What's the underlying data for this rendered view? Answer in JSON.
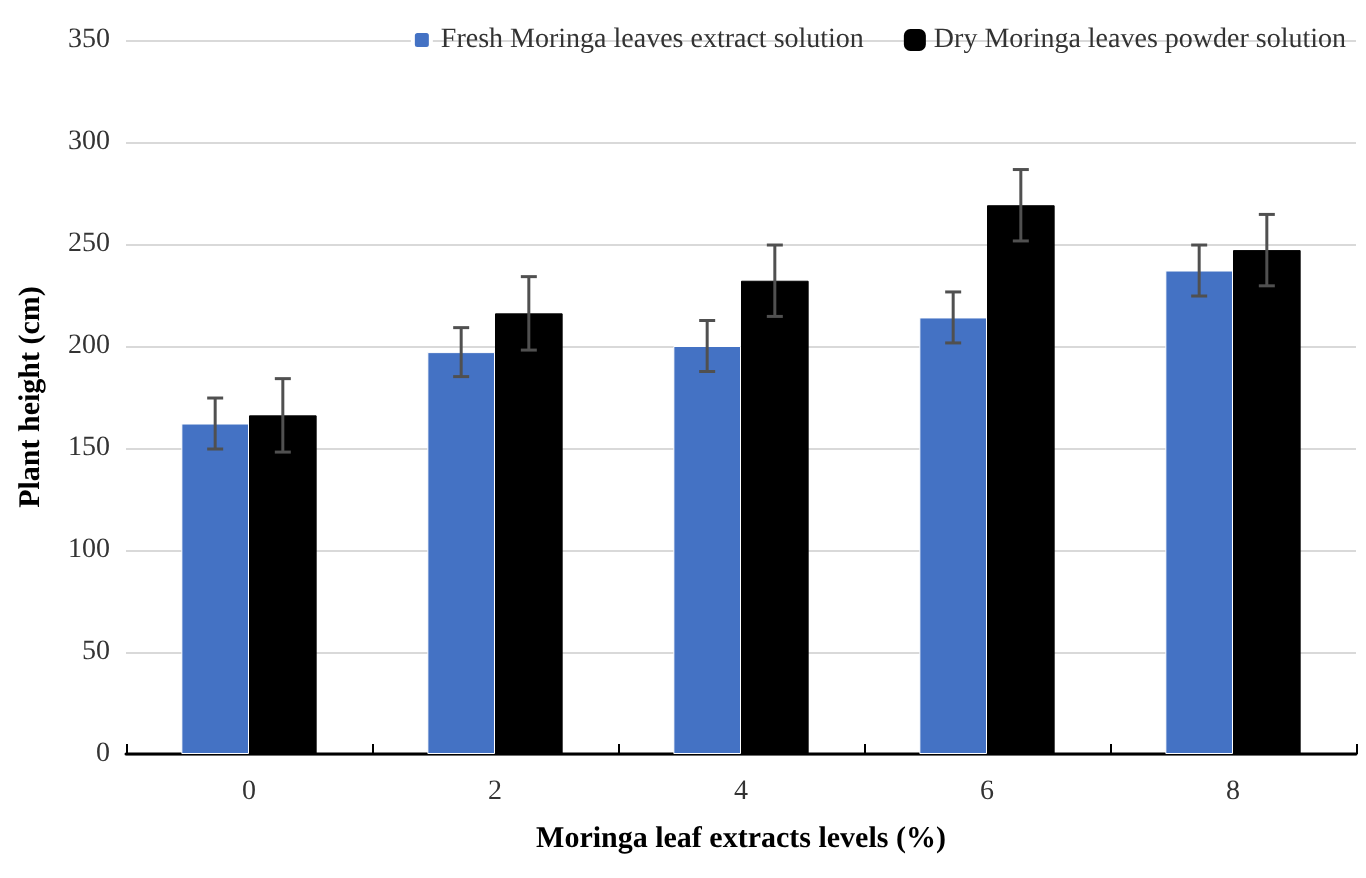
{
  "chart_data": {
    "type": "bar",
    "xlabel": "Moringa leaf extracts levels (%)",
    "ylabel": "Plant height (cm)",
    "categories": [
      "0",
      "2",
      "4",
      "6",
      "8"
    ],
    "series": [
      {
        "name": "Fresh Moringa leaves extract solution",
        "color": "#4472c4",
        "values": [
          162,
          197,
          200,
          214,
          237
        ],
        "errors": [
          12.5,
          12,
          12.5,
          12.5,
          12.5
        ]
      },
      {
        "name": "Dry Moringa leaves powder solution",
        "color": "#000000",
        "values": [
          166,
          216,
          232,
          269,
          247
        ],
        "errors": [
          18,
          18,
          17.5,
          17.5,
          17.5
        ]
      }
    ],
    "ylim": [
      0,
      350
    ],
    "yticks": [
      0,
      50,
      100,
      150,
      200,
      250,
      300,
      350
    ],
    "grid": "y",
    "legend": "top right"
  }
}
